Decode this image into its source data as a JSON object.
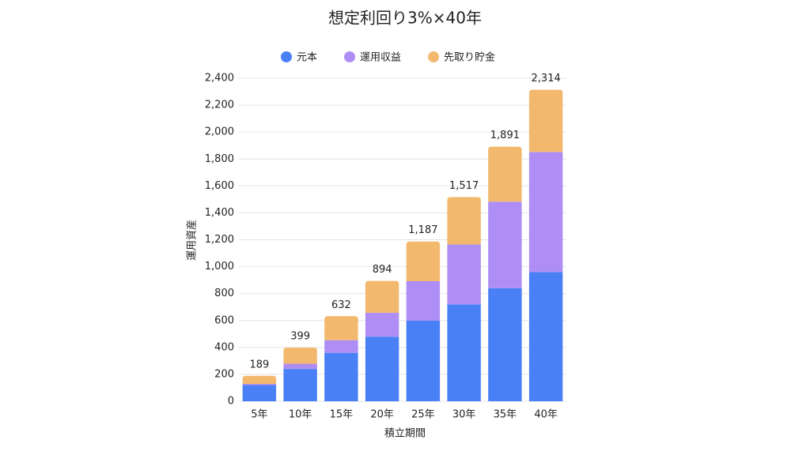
{
  "chart_data": {
    "type": "stacked_bar",
    "title": "想定利回り3%×40年",
    "x_label": "積立期間",
    "y_label": "運用資産",
    "categories": [
      "5年",
      "10年",
      "15年",
      "20年",
      "25年",
      "30年",
      "35年",
      "40年"
    ],
    "series": [
      {
        "name": "元本",
        "color": "#4a80f5",
        "values": [
          120,
          240,
          360,
          480,
          600,
          720,
          840,
          960
        ]
      },
      {
        "name": "運用収益",
        "color": "#ae8ef4",
        "values": [
          9,
          39,
          94,
          177,
          292,
          445,
          643,
          892
        ]
      },
      {
        "name": "先取り貯金",
        "color": "#f2b96e",
        "values": [
          60,
          120,
          178,
          237,
          295,
          352,
          408,
          462
        ]
      }
    ],
    "totals": {
      "values": [
        189,
        399,
        632,
        894,
        1187,
        1517,
        1891,
        2314
      ],
      "value_labels": [
        "189",
        "399",
        "632",
        "894",
        "1,187",
        "1,517",
        "1,891",
        "2,314"
      ]
    },
    "ylim": [
      0,
      2400
    ],
    "yticks": [
      0,
      200,
      400,
      600,
      800,
      {
        "value": 1000,
        "label": "1,000"
      },
      {
        "value": 1200,
        "label": "1,200"
      },
      {
        "value": 1400,
        "label": "1,400"
      },
      {
        "value": 1600,
        "label": "1,600"
      },
      {
        "value": 1800,
        "label": "1,800"
      },
      {
        "value": 2000,
        "label": "2,000"
      },
      {
        "value": 2200,
        "label": "2,200"
      },
      {
        "value": 2400,
        "label": "2,400"
      }
    ],
    "grid": true,
    "legend": "top"
  }
}
